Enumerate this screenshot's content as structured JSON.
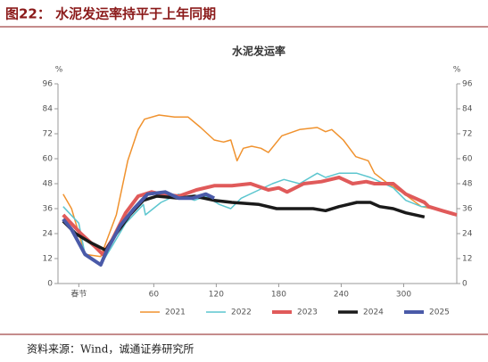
{
  "header": "图22：  水泥发运率持平于上年同期",
  "source": "资料来源：Wind，诚通证券研究所",
  "chart_data": {
    "type": "line",
    "title": "水泥发运率",
    "y_unit": "%",
    "y2_unit": "%",
    "xlim": [
      -32,
      351
    ],
    "xticks": [
      {
        "value": -12,
        "label": "春节"
      },
      60,
      120,
      180,
      240,
      300
    ],
    "ylim": [
      0,
      96
    ],
    "yticks": [
      0,
      12,
      24,
      36,
      48,
      60,
      72,
      84,
      96
    ],
    "y2lim": [
      0,
      96
    ],
    "y2ticks": [
      0,
      12,
      24,
      36,
      48,
      60,
      72,
      84,
      96
    ],
    "series": [
      {
        "name": "2021",
        "color": "#f0922e",
        "width": 1.5,
        "x": [
          -27,
          -19,
          -6,
          9,
          15,
          24,
          35,
          45,
          51,
          65,
          80,
          93,
          105,
          118,
          127,
          134,
          140,
          146,
          154,
          163,
          170,
          183,
          200,
          217,
          225,
          231,
          242,
          254,
          266,
          272,
          285,
          298,
          317,
          337,
          351
        ],
        "values": [
          43,
          36,
          14,
          13,
          21,
          33,
          59,
          74,
          79,
          81,
          80,
          80,
          75,
          69,
          68,
          69,
          59,
          65,
          66,
          65,
          63,
          71,
          74,
          75,
          73,
          74,
          69,
          61,
          59,
          53,
          48,
          44,
          37,
          35,
          33
        ]
      },
      {
        "name": "2022",
        "color": "#5cc6cf",
        "width": 1.5,
        "x": [
          -27,
          -12,
          -6,
          9,
          20,
          33,
          50,
          52,
          67,
          84,
          99,
          110,
          123,
          134,
          144,
          161,
          174,
          185,
          200,
          217,
          225,
          238,
          255,
          268,
          290,
          302,
          317,
          324
        ],
        "values": [
          37,
          29,
          14,
          9,
          18,
          29,
          38,
          33,
          39,
          43,
          40,
          42,
          38,
          36,
          41,
          45,
          48,
          50,
          48,
          53,
          51,
          53,
          53,
          51,
          46,
          40,
          37,
          37
        ]
      },
      {
        "name": "2023",
        "color": "#e05a5a",
        "width": 4,
        "x": [
          -27,
          -10,
          3,
          11,
          20,
          33,
          45,
          58,
          67,
          84,
          101,
          118,
          135,
          153,
          170,
          180,
          188,
          204,
          221,
          238,
          251,
          264,
          272,
          290,
          302,
          320,
          324,
          337,
          351
        ],
        "values": [
          33,
          24,
          18,
          14,
          21,
          34,
          42,
          44,
          43,
          42,
          45,
          47,
          47,
          48,
          45,
          46,
          44,
          48,
          49,
          51,
          48,
          49,
          48,
          48,
          43,
          39,
          37,
          35,
          33
        ]
      },
      {
        "name": "2024",
        "color": "#1a1a1a",
        "width": 3.5,
        "x": [
          -27,
          -15,
          -2,
          14,
          24,
          37,
          50,
          63,
          84,
          99,
          118,
          135,
          161,
          178,
          195,
          213,
          225,
          238,
          255,
          268,
          277,
          290,
          302,
          320
        ],
        "values": [
          30,
          24,
          20,
          16,
          24,
          33,
          40,
          42,
          41,
          42,
          40,
          39,
          38,
          36,
          36,
          36,
          35,
          37,
          39,
          39,
          37,
          36,
          34,
          32
        ]
      },
      {
        "name": "2025",
        "color": "#4a5aa8",
        "width": 4,
        "x": [
          -27,
          -19,
          -6,
          9,
          15,
          28,
          41,
          54,
          71,
          84,
          97,
          110,
          118
        ],
        "values": [
          31,
          26,
          14,
          9,
          16,
          28,
          36,
          43,
          44,
          41,
          41,
          43,
          41
        ]
      }
    ]
  }
}
